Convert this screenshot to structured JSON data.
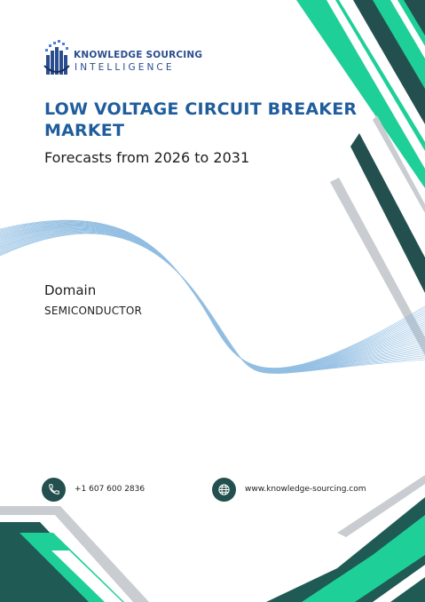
{
  "brand": {
    "name_line1": "KNOWLEDGE SOURCING",
    "name_line2": "INTELLIGENCE"
  },
  "report": {
    "title": "LOW VOLTAGE CIRCUIT BREAKER MARKET",
    "subtitle": "Forecasts from 2026 to 2031"
  },
  "domain": {
    "label": "Domain",
    "value": "SEMICONDUCTOR"
  },
  "contact": {
    "phone": "+1 607 600 2836",
    "website": "www.knowledge-sourcing.com"
  },
  "icons": {
    "phone": "phone-icon",
    "web": "globe-icon",
    "logo": "logo-mark-icon"
  },
  "colors": {
    "title": "#1f5d9c",
    "teal_dark": "#1f5a55",
    "teal_bright": "#1fcf98",
    "wave": "#7fb3dd"
  }
}
